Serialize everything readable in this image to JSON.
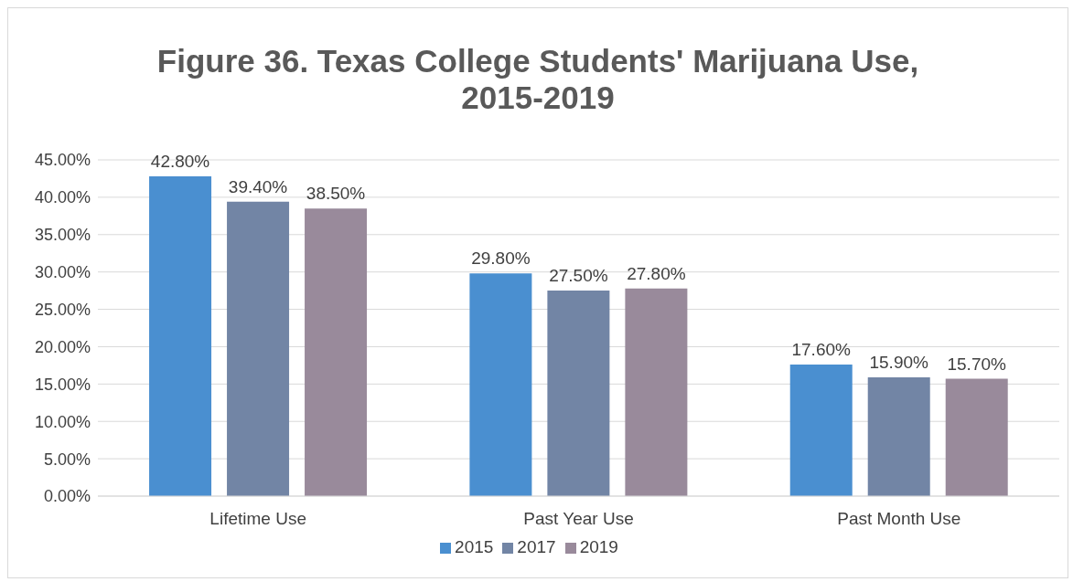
{
  "chart_data": {
    "type": "bar",
    "title": "Figure 36. Texas College Students' Marijuana Use, 2015-2019",
    "categories": [
      "Lifetime Use",
      "Past Year Use",
      "Past Month Use"
    ],
    "series": [
      {
        "name": "2015",
        "color": "#4a8fd0",
        "values": [
          42.8,
          29.8,
          17.6
        ],
        "value_labels": [
          "42.80%",
          "29.80%",
          "17.60%"
        ]
      },
      {
        "name": "2017",
        "color": "#7285a5",
        "values": [
          39.4,
          27.5,
          15.9
        ],
        "value_labels": [
          "39.40%",
          "27.50%",
          "15.90%"
        ]
      },
      {
        "name": "2019",
        "color": "#998a9b",
        "values": [
          38.5,
          27.8,
          15.7
        ],
        "value_labels": [
          "38.50%",
          "27.80%",
          "15.70%"
        ]
      }
    ],
    "ylim": [
      0,
      45
    ],
    "yticks": [
      {
        "value": 0,
        "label": "0.00%"
      },
      {
        "value": 5,
        "label": "5.00%"
      },
      {
        "value": 10,
        "label": "10.00%"
      },
      {
        "value": 15,
        "label": "15.00%"
      },
      {
        "value": 20,
        "label": "20.00%"
      },
      {
        "value": 25,
        "label": "25.00%"
      },
      {
        "value": 30,
        "label": "30.00%"
      },
      {
        "value": 35,
        "label": "35.00%"
      },
      {
        "value": 40,
        "label": "40.00%"
      },
      {
        "value": 45,
        "label": "45.00%"
      }
    ],
    "grid": "y",
    "legend": "bottom"
  }
}
